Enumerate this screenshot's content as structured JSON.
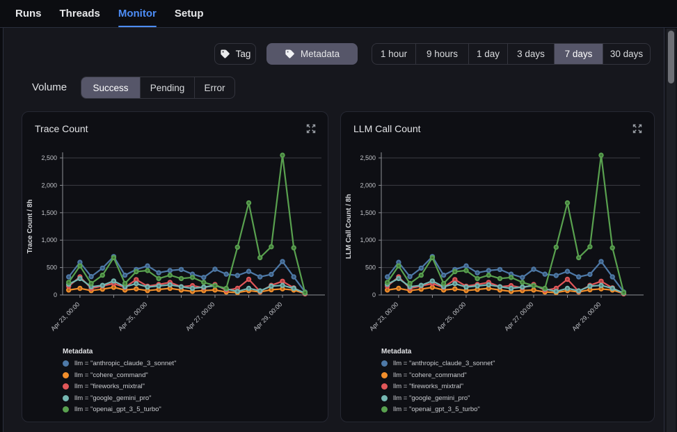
{
  "nav": {
    "tabs": [
      {
        "label": "Runs",
        "active": false
      },
      {
        "label": "Threads",
        "active": false
      },
      {
        "label": "Monitor",
        "active": true
      },
      {
        "label": "Setup",
        "active": false
      }
    ]
  },
  "filters": {
    "tag": {
      "label": "Tag",
      "selected": false
    },
    "metadata": {
      "label": "Metadata",
      "selected": true
    },
    "time_ranges": {
      "options": [
        "1 hour",
        "9 hours",
        "1 day",
        "3 days",
        "7 days",
        "30 days"
      ],
      "selected": "7 days"
    }
  },
  "volume": {
    "label": "Volume",
    "options": [
      "Success",
      "Pending",
      "Error"
    ],
    "selected": "Success"
  },
  "colors": {
    "accent_blue": "#4d8df6",
    "selected_segment": "#565669",
    "series_blue": "#4e79a7",
    "series_orange": "#f28e2b",
    "series_red": "#e15759",
    "series_teal": "#76b7b2",
    "series_green": "#59a14f"
  },
  "chart_data": [
    {
      "type": "line",
      "title": "Trace Count",
      "ylabel": "Trace Count / 8h",
      "ylim": [
        0,
        2500
      ],
      "grid": true,
      "legend_position": "bottom",
      "yticks": [
        {
          "value": 0,
          "label": "0"
        },
        {
          "value": 500,
          "label": "500"
        },
        {
          "value": 1000,
          "label": "1,000"
        },
        {
          "value": 1500,
          "label": "1,500"
        },
        {
          "value": 2000,
          "label": "2,000"
        },
        {
          "value": 2500,
          "label": "2,500"
        }
      ],
      "tick_indices": [
        1,
        4,
        7,
        10,
        13,
        16,
        19
      ],
      "x_labels": [
        {
          "index": 1,
          "text": "Apr 23, 00:00"
        },
        {
          "index": 7,
          "text": "Apr 25, 00:00"
        },
        {
          "index": 13,
          "text": "Apr 27, 00:00"
        },
        {
          "index": 19,
          "text": "Apr 29, 00:00"
        }
      ],
      "legend_title": "Metadata",
      "series": [
        {
          "name": "llm = \"anthropic_claude_3_sonnet\"",
          "color": "#4e79a7",
          "values": [
            330,
            595,
            335,
            490,
            700,
            360,
            465,
            530,
            405,
            445,
            465,
            380,
            320,
            470,
            380,
            355,
            430,
            330,
            375,
            610,
            330,
            55
          ]
        },
        {
          "name": "llm = \"cohere_command\"",
          "color": "#f28e2b",
          "values": [
            90,
            120,
            80,
            105,
            140,
            90,
            110,
            80,
            100,
            120,
            90,
            65,
            80,
            90,
            55,
            45,
            80,
            55,
            95,
            110,
            90,
            25
          ]
        },
        {
          "name": "llm = \"fireworks_mixtral\"",
          "color": "#e15759",
          "values": [
            160,
            330,
            120,
            165,
            210,
            140,
            280,
            160,
            190,
            230,
            150,
            170,
            130,
            190,
            85,
            120,
            285,
            65,
            175,
            250,
            130,
            20
          ]
        },
        {
          "name": "llm = \"google_gemini_pro\"",
          "color": "#76b7b2",
          "values": [
            195,
            300,
            150,
            175,
            255,
            150,
            205,
            145,
            165,
            185,
            150,
            120,
            145,
            170,
            110,
            65,
            120,
            75,
            160,
            175,
            120,
            35
          ]
        },
        {
          "name": "llm = \"openai_gpt_3_5_turbo\"",
          "color": "#59a14f",
          "values": [
            230,
            530,
            210,
            360,
            680,
            210,
            425,
            445,
            300,
            360,
            300,
            320,
            230,
            170,
            120,
            870,
            1680,
            680,
            880,
            2550,
            860,
            45
          ]
        }
      ]
    },
    {
      "type": "line",
      "title": "LLM Call Count",
      "ylabel": "LLM Call Count / 8h",
      "ylim": [
        0,
        2500
      ],
      "grid": true,
      "legend_position": "bottom",
      "yticks": [
        {
          "value": 0,
          "label": "0"
        },
        {
          "value": 500,
          "label": "500"
        },
        {
          "value": 1000,
          "label": "1,000"
        },
        {
          "value": 1500,
          "label": "1,500"
        },
        {
          "value": 2000,
          "label": "2,000"
        },
        {
          "value": 2500,
          "label": "2,500"
        }
      ],
      "tick_indices": [
        1,
        4,
        7,
        10,
        13,
        16,
        19
      ],
      "x_labels": [
        {
          "index": 1,
          "text": "Apr 23, 00:00"
        },
        {
          "index": 7,
          "text": "Apr 25, 00:00"
        },
        {
          "index": 13,
          "text": "Apr 27, 00:00"
        },
        {
          "index": 19,
          "text": "Apr 29, 00:00"
        }
      ],
      "legend_title": "Metadata",
      "series": [
        {
          "name": "llm = \"anthropic_claude_3_sonnet\"",
          "color": "#4e79a7",
          "values": [
            330,
            595,
            335,
            490,
            700,
            360,
            465,
            530,
            405,
            445,
            465,
            380,
            320,
            470,
            380,
            355,
            430,
            330,
            375,
            610,
            330,
            55
          ]
        },
        {
          "name": "llm = \"cohere_command\"",
          "color": "#f28e2b",
          "values": [
            90,
            120,
            80,
            105,
            140,
            90,
            110,
            80,
            100,
            120,
            90,
            65,
            80,
            90,
            55,
            45,
            80,
            55,
            95,
            110,
            90,
            25
          ]
        },
        {
          "name": "llm = \"fireworks_mixtral\"",
          "color": "#e15759",
          "values": [
            160,
            330,
            120,
            165,
            210,
            140,
            280,
            160,
            190,
            230,
            150,
            170,
            130,
            190,
            85,
            120,
            285,
            65,
            175,
            250,
            130,
            20
          ]
        },
        {
          "name": "llm = \"google_gemini_pro\"",
          "color": "#76b7b2",
          "values": [
            195,
            300,
            150,
            175,
            255,
            150,
            205,
            145,
            165,
            185,
            150,
            120,
            145,
            170,
            110,
            65,
            120,
            75,
            160,
            175,
            120,
            35
          ]
        },
        {
          "name": "llm = \"openai_gpt_3_5_turbo\"",
          "color": "#59a14f",
          "values": [
            230,
            530,
            210,
            360,
            680,
            210,
            425,
            445,
            300,
            360,
            300,
            320,
            230,
            170,
            120,
            870,
            1680,
            680,
            880,
            2550,
            860,
            45
          ]
        }
      ]
    }
  ]
}
